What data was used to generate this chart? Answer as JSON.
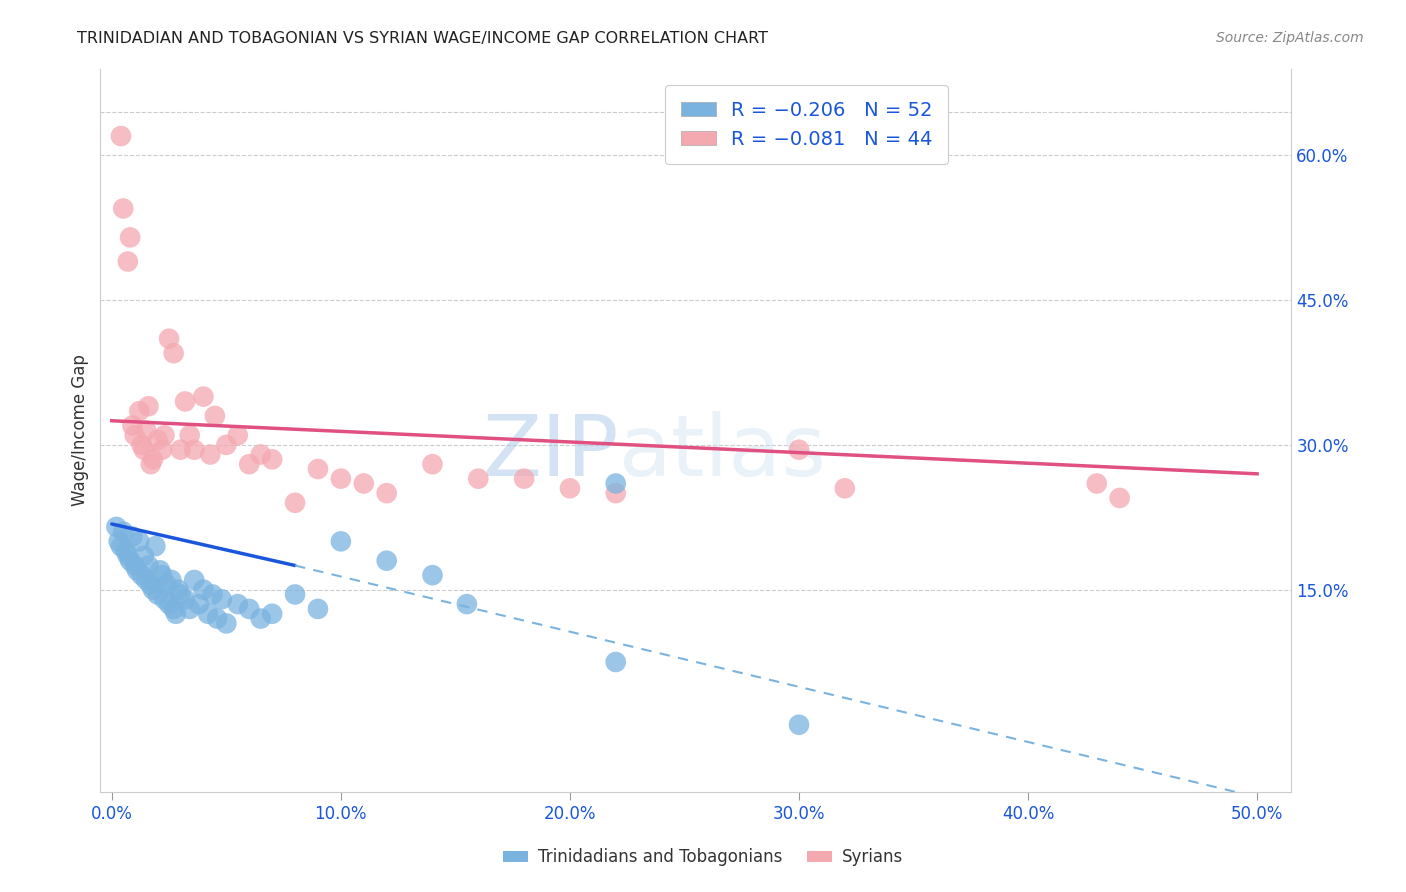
{
  "title": "TRINIDADIAN AND TOBAGONIAN VS SYRIAN WAGE/INCOME GAP CORRELATION CHART",
  "source": "Source: ZipAtlas.com",
  "ylabel": "Wage/Income Gap",
  "watermark": "ZIPAtlas",
  "blue_color": "#7ab3e0",
  "pink_color": "#f4a8b0",
  "line_blue_solid_color": "#1a56db",
  "line_blue_dash_color": "#7ab3e0",
  "line_pink_color": "#e05080",
  "legend_text_color": "#1a56db",
  "tick_color": "#1a56db",
  "grid_color": "#cccccc",
  "ylabel_ticks": [
    "15.0%",
    "30.0%",
    "45.0%",
    "60.0%"
  ],
  "ylabel_vals": [
    0.15,
    0.3,
    0.45,
    0.6
  ],
  "xlabel_ticks": [
    "0.0%",
    "10.0%",
    "20.0%",
    "30.0%",
    "40.0%",
    "50.0%"
  ],
  "xlabel_vals": [
    0.0,
    0.1,
    0.2,
    0.3,
    0.4,
    0.5
  ],
  "xlim": [
    -0.005,
    0.515
  ],
  "ylim": [
    -0.06,
    0.69
  ],
  "blue_line_x0": 0.0,
  "blue_line_y0": 0.218,
  "blue_line_x_break": 0.08,
  "blue_line_y_break": 0.175,
  "blue_line_x1": 0.5,
  "blue_line_y1": -0.065,
  "pink_line_x0": 0.0,
  "pink_line_y0": 0.325,
  "pink_line_x1": 0.5,
  "pink_line_y1": 0.27,
  "blue_x": [
    0.002,
    0.003,
    0.004,
    0.005,
    0.006,
    0.007,
    0.008,
    0.009,
    0.01,
    0.011,
    0.012,
    0.013,
    0.014,
    0.015,
    0.016,
    0.017,
    0.018,
    0.019,
    0.02,
    0.021,
    0.022,
    0.023,
    0.024,
    0.025,
    0.026,
    0.027,
    0.028,
    0.029,
    0.03,
    0.032,
    0.034,
    0.036,
    0.038,
    0.04,
    0.042,
    0.044,
    0.046,
    0.048,
    0.05,
    0.055,
    0.06,
    0.065,
    0.07,
    0.08,
    0.09,
    0.1,
    0.12,
    0.14,
    0.155,
    0.22,
    0.3,
    0.22
  ],
  "blue_y": [
    0.215,
    0.2,
    0.195,
    0.21,
    0.19,
    0.185,
    0.18,
    0.205,
    0.175,
    0.17,
    0.2,
    0.165,
    0.185,
    0.16,
    0.175,
    0.155,
    0.15,
    0.195,
    0.145,
    0.17,
    0.165,
    0.14,
    0.155,
    0.135,
    0.16,
    0.13,
    0.125,
    0.15,
    0.145,
    0.14,
    0.13,
    0.16,
    0.135,
    0.15,
    0.125,
    0.145,
    0.12,
    0.14,
    0.115,
    0.135,
    0.13,
    0.12,
    0.125,
    0.145,
    0.13,
    0.2,
    0.18,
    0.165,
    0.135,
    0.26,
    0.01,
    0.075
  ],
  "pink_x": [
    0.004,
    0.005,
    0.007,
    0.008,
    0.009,
    0.01,
    0.012,
    0.013,
    0.014,
    0.015,
    0.016,
    0.017,
    0.018,
    0.02,
    0.022,
    0.023,
    0.025,
    0.027,
    0.03,
    0.032,
    0.034,
    0.036,
    0.04,
    0.043,
    0.045,
    0.05,
    0.055,
    0.06,
    0.065,
    0.07,
    0.08,
    0.09,
    0.1,
    0.11,
    0.12,
    0.14,
    0.16,
    0.18,
    0.2,
    0.22,
    0.3,
    0.32,
    0.43,
    0.44
  ],
  "pink_y": [
    0.62,
    0.545,
    0.49,
    0.515,
    0.32,
    0.31,
    0.335,
    0.3,
    0.295,
    0.315,
    0.34,
    0.28,
    0.285,
    0.305,
    0.295,
    0.31,
    0.41,
    0.395,
    0.295,
    0.345,
    0.31,
    0.295,
    0.35,
    0.29,
    0.33,
    0.3,
    0.31,
    0.28,
    0.29,
    0.285,
    0.24,
    0.275,
    0.265,
    0.26,
    0.25,
    0.28,
    0.265,
    0.265,
    0.255,
    0.25,
    0.295,
    0.255,
    0.26,
    0.245
  ]
}
